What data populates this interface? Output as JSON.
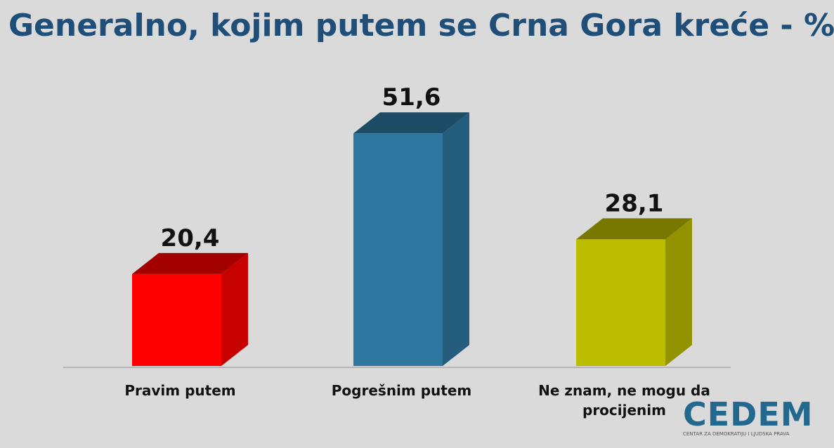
{
  "chart_data": {
    "type": "bar3d",
    "title": "Generalno, kojim putem se Crna Gora kreće - %",
    "categories": [
      "Pravim putem",
      "Pogrešnim putem",
      "Ne znam, ne mogu da procijenim"
    ],
    "values": [
      20.4,
      51.6,
      28.1
    ],
    "value_labels": [
      "20,4",
      "51,6",
      "28,1"
    ],
    "colors": [
      "#ff0000",
      "#2e77a0",
      "#bcbc00"
    ]
  },
  "logo": {
    "name": "CEDEM",
    "tagline": "CENTAR ZA DEMOKRATIJU I LJUDSKA PRAVA"
  }
}
